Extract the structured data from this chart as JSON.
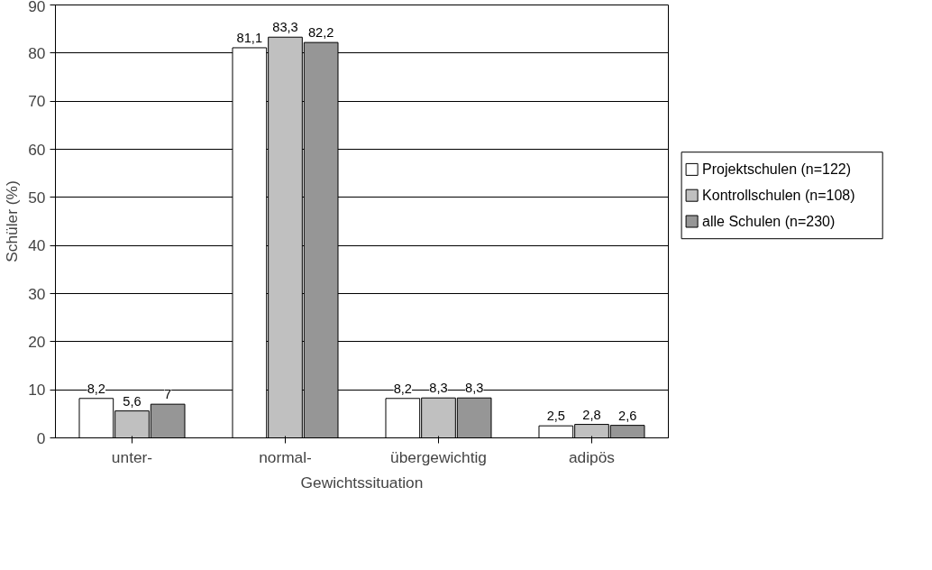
{
  "chart_data": {
    "type": "bar",
    "xlabel": "Gewichtssituation",
    "ylabel": "Schüler (%)",
    "categories": [
      "unter-",
      "normal-",
      "übergewichtig",
      "adipös"
    ],
    "series": [
      {
        "name": "Projektschulen (n=122)",
        "color": "#ffffff",
        "values": [
          8.2,
          81.1,
          8.2,
          2.5
        ],
        "value_labels": [
          "8,2",
          "81,1",
          "8,2",
          "2,5"
        ]
      },
      {
        "name": "Kontrollschulen (n=108)",
        "color": "#c0c0c0",
        "values": [
          5.6,
          83.3,
          8.3,
          2.8
        ],
        "value_labels": [
          "5,6",
          "83,3",
          "8,3",
          "2,8"
        ]
      },
      {
        "name": "alle Schulen (n=230)",
        "color": "#969696",
        "values": [
          7,
          82.2,
          8.3,
          2.6
        ],
        "value_labels": [
          "7",
          "82,2",
          "8,3",
          "2,6"
        ]
      }
    ],
    "ylim": [
      0,
      90
    ],
    "yticks": [
      0,
      10,
      20,
      30,
      40,
      50,
      60,
      70,
      80,
      90
    ],
    "grid": "y",
    "legend": "right"
  }
}
